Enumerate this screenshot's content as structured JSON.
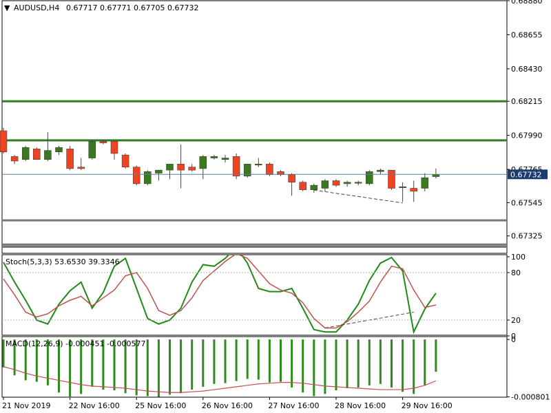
{
  "header": {
    "arrow_glyph": "▼",
    "symbol_label": "AUDUSD,H4",
    "ohlc_label": "0.67717 0.67771 0.67705 0.67732"
  },
  "stoch_label": "Stoch(5,3,3) 53.6530 39.3346",
  "macd_label": "MACD(12,26,9) -0.000451 -0.000577",
  "current_price_label": "0.67732",
  "colors": {
    "bull": "#3a7a1e",
    "bear": "#ee4422",
    "level_green": "#2e7d1e",
    "level_gray": "#777777",
    "stoch_main": "#1f8a16",
    "stoch_signal": "#c0504d",
    "macd_hist": "#2e8b1e",
    "macd_signal": "#c0504d",
    "grid": "#b0b0b0",
    "current_line": "#5a7fa0",
    "current_tag_bg": "#1c3c70"
  },
  "chart_data": [
    {
      "type": "candlestick",
      "title": "AUDUSD,H4",
      "price_axis_ticks": [
        "0.68880",
        "0.68655",
        "0.68430",
        "0.68215",
        "0.67990",
        "0.67765",
        "0.67545",
        "0.67325"
      ],
      "ylim": [
        0.6721,
        0.6888
      ],
      "current_price": 0.67732,
      "horizontal_levels": [
        {
          "price": 0.68215,
          "color": "green"
        },
        {
          "price": 0.67957,
          "color": "green"
        },
        {
          "price": 0.67428,
          "color": "gray"
        },
        {
          "price": 0.67268,
          "color": "gray"
        },
        {
          "price": 0.67253,
          "color": "gray"
        }
      ],
      "trend_line": {
        "from_index": 28,
        "from_price": 0.67628,
        "to_index": 36,
        "to_price": 0.67543
      },
      "candles": [
        {
          "o": 0.6802,
          "h": 0.6804,
          "l": 0.6787,
          "c": 0.6788
        },
        {
          "o": 0.6785,
          "h": 0.6786,
          "l": 0.678,
          "c": 0.6782
        },
        {
          "o": 0.6783,
          "h": 0.6792,
          "l": 0.6782,
          "c": 0.6791
        },
        {
          "o": 0.679,
          "h": 0.6791,
          "l": 0.6783,
          "c": 0.6783
        },
        {
          "o": 0.6783,
          "h": 0.6801,
          "l": 0.6782,
          "c": 0.6789
        },
        {
          "o": 0.6788,
          "h": 0.6792,
          "l": 0.6786,
          "c": 0.6791
        },
        {
          "o": 0.679,
          "h": 0.6792,
          "l": 0.6776,
          "c": 0.6777
        },
        {
          "o": 0.6778,
          "h": 0.6784,
          "l": 0.6776,
          "c": 0.6777
        },
        {
          "o": 0.6784,
          "h": 0.6796,
          "l": 0.6783,
          "c": 0.6795
        },
        {
          "o": 0.6795,
          "h": 0.6796,
          "l": 0.6793,
          "c": 0.6794
        },
        {
          "o": 0.6795,
          "h": 0.6796,
          "l": 0.6783,
          "c": 0.6787
        },
        {
          "o": 0.6786,
          "h": 0.6787,
          "l": 0.6777,
          "c": 0.6778
        },
        {
          "o": 0.6778,
          "h": 0.6779,
          "l": 0.6766,
          "c": 0.6767
        },
        {
          "o": 0.6767,
          "h": 0.6776,
          "l": 0.6766,
          "c": 0.6775
        },
        {
          "o": 0.6774,
          "h": 0.6776,
          "l": 0.6769,
          "c": 0.6776
        },
        {
          "o": 0.6776,
          "h": 0.678,
          "l": 0.677,
          "c": 0.678
        },
        {
          "o": 0.678,
          "h": 0.6793,
          "l": 0.6764,
          "c": 0.6776
        },
        {
          "o": 0.6778,
          "h": 0.678,
          "l": 0.6775,
          "c": 0.6776
        },
        {
          "o": 0.6777,
          "h": 0.6786,
          "l": 0.677,
          "c": 0.6785
        },
        {
          "o": 0.6784,
          "h": 0.6786,
          "l": 0.6783,
          "c": 0.6785
        },
        {
          "o": 0.6783,
          "h": 0.6786,
          "l": 0.6781,
          "c": 0.6784
        },
        {
          "o": 0.6785,
          "h": 0.6787,
          "l": 0.677,
          "c": 0.6772
        },
        {
          "o": 0.6772,
          "h": 0.678,
          "l": 0.6771,
          "c": 0.678
        },
        {
          "o": 0.678,
          "h": 0.6784,
          "l": 0.6778,
          "c": 0.678
        },
        {
          "o": 0.678,
          "h": 0.6781,
          "l": 0.6772,
          "c": 0.6773
        },
        {
          "o": 0.6775,
          "h": 0.6776,
          "l": 0.6772,
          "c": 0.6773
        },
        {
          "o": 0.6773,
          "h": 0.6774,
          "l": 0.6759,
          "c": 0.6768
        },
        {
          "o": 0.6768,
          "h": 0.6769,
          "l": 0.6762,
          "c": 0.6763
        },
        {
          "o": 0.6763,
          "h": 0.6767,
          "l": 0.6761,
          "c": 0.6766
        },
        {
          "o": 0.6764,
          "h": 0.677,
          "l": 0.6762,
          "c": 0.6769
        },
        {
          "o": 0.6769,
          "h": 0.677,
          "l": 0.6765,
          "c": 0.6766
        },
        {
          "o": 0.6767,
          "h": 0.6769,
          "l": 0.6765,
          "c": 0.6768
        },
        {
          "o": 0.6768,
          "h": 0.6769,
          "l": 0.6766,
          "c": 0.6768
        },
        {
          "o": 0.6767,
          "h": 0.6776,
          "l": 0.6766,
          "c": 0.6775
        },
        {
          "o": 0.6775,
          "h": 0.6777,
          "l": 0.6773,
          "c": 0.6776
        },
        {
          "o": 0.6776,
          "h": 0.6776,
          "l": 0.6763,
          "c": 0.6764
        },
        {
          "o": 0.6765,
          "h": 0.6768,
          "l": 0.6755,
          "c": 0.6765
        },
        {
          "o": 0.6764,
          "h": 0.6769,
          "l": 0.6755,
          "c": 0.6762
        },
        {
          "o": 0.6764,
          "h": 0.6774,
          "l": 0.6762,
          "c": 0.6771
        },
        {
          "o": 0.67717,
          "h": 0.67771,
          "l": 0.67705,
          "c": 0.67732
        }
      ]
    },
    {
      "type": "line",
      "title": "Stoch(5,3,3)",
      "ylim": [
        0,
        100
      ],
      "ticks": [
        "100",
        "80",
        "20",
        "0"
      ],
      "levels": [
        80,
        20
      ],
      "series": [
        {
          "name": "main",
          "values": [
            93,
            68,
            45,
            20,
            15,
            40,
            57,
            68,
            35,
            55,
            88,
            98,
            60,
            22,
            15,
            20,
            35,
            68,
            90,
            88,
            98,
            112,
            92,
            60,
            56,
            56,
            60,
            35,
            8,
            5,
            5,
            20,
            40,
            70,
            92,
            99,
            82,
            5,
            34,
            54
          ]
        },
        {
          "name": "signal",
          "values": [
            72,
            52,
            30,
            24,
            28,
            38,
            45,
            50,
            38,
            48,
            58,
            76,
            80,
            60,
            32,
            26,
            32,
            48,
            70,
            82,
            94,
            104,
            98,
            82,
            66,
            58,
            54,
            42,
            22,
            10,
            10,
            18,
            30,
            44,
            68,
            88,
            85,
            58,
            36,
            39
          ]
        }
      ],
      "trend_line": {
        "from_index": 29,
        "from_value": 10,
        "to_index": 37,
        "to_value": 30
      }
    },
    {
      "type": "bar",
      "title": "MACD(12,26,9)",
      "ylim": [
        -0.000805,
        4e-05
      ],
      "ticks": [
        "0",
        "-0.000801"
      ],
      "series": [
        {
          "name": "histogram",
          "values": [
            -0.00039,
            -0.0005,
            -0.00057,
            -0.00059,
            -0.00064,
            -0.00074,
            -0.00081,
            -0.00076,
            -0.00066,
            -0.0007,
            -0.00071,
            -0.00075,
            -0.00078,
            -0.00079,
            -0.0008,
            -0.00077,
            -0.00075,
            -0.0007,
            -0.00066,
            -0.00062,
            -0.00061,
            -0.00058,
            -0.00055,
            -0.00056,
            -0.0006,
            -0.00059,
            -0.00067,
            -0.00074,
            -0.00079,
            -0.00076,
            -0.00071,
            -0.00068,
            -0.00067,
            -0.00064,
            -0.00062,
            -0.00067,
            -0.00073,
            -0.00076,
            -0.00064,
            -0.000451
          ]
        },
        {
          "name": "signal",
          "values": [
            -0.00038,
            -0.00042,
            -0.00047,
            -0.00051,
            -0.00054,
            -0.00057,
            -0.0006,
            -0.00063,
            -0.00065,
            -0.00066,
            -0.00067,
            -0.00068,
            -0.0007,
            -0.00072,
            -0.00073,
            -0.00074,
            -0.00074,
            -0.00073,
            -0.00072,
            -0.0007,
            -0.00068,
            -0.00066,
            -0.00064,
            -0.00062,
            -0.00061,
            -0.0006,
            -0.0006,
            -0.00061,
            -0.00063,
            -0.00065,
            -0.00066,
            -0.00067,
            -0.00068,
            -0.00069,
            -0.0007,
            -0.0007,
            -0.0007,
            -0.00068,
            -0.00064,
            -0.000577
          ]
        }
      ]
    }
  ],
  "time_axis": [
    {
      "label": "21 Nov 2019",
      "index": 0
    },
    {
      "label": "22 Nov 16:00",
      "index": 6
    },
    {
      "label": "25 Nov 16:00",
      "index": 12
    },
    {
      "label": "26 Nov 16:00",
      "index": 18
    },
    {
      "label": "27 Nov 16:00",
      "index": 24
    },
    {
      "label": "28 Nov 16:00",
      "index": 30
    },
    {
      "label": "29 Nov 16:00",
      "index": 36
    }
  ]
}
